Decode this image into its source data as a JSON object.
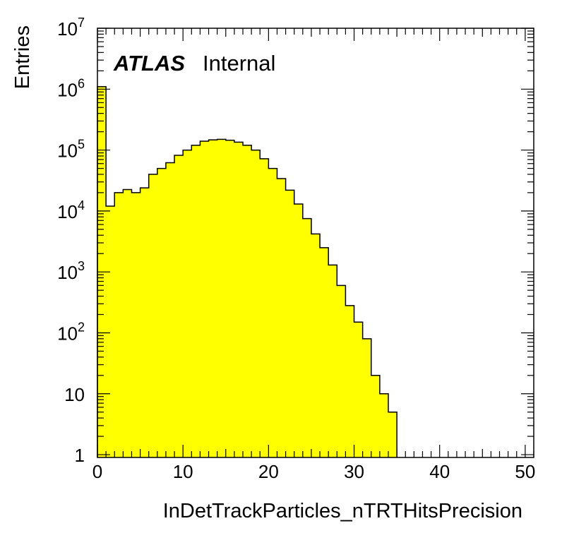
{
  "chart_data": {
    "type": "bar",
    "histogram": true,
    "xlabel": "InDetTrackParticles_nTRTHitsPrecision",
    "ylabel": "Entries",
    "xlim": [
      0,
      51
    ],
    "ylim": [
      0.9,
      10000000
    ],
    "yscale": "log",
    "grid": false,
    "bin_width": 1,
    "bin_starts": [
      0,
      1,
      2,
      3,
      4,
      5,
      6,
      7,
      8,
      9,
      10,
      11,
      12,
      13,
      14,
      15,
      16,
      17,
      18,
      19,
      20,
      21,
      22,
      23,
      24,
      25,
      26,
      27,
      28,
      29,
      30,
      31,
      32,
      33,
      34
    ],
    "values": [
      1100000,
      12000,
      20000,
      22500,
      20000,
      24000,
      40000,
      50000,
      62000,
      82000,
      100000,
      120000,
      140000,
      147000,
      150000,
      145000,
      135000,
      120000,
      100000,
      72000,
      50000,
      34000,
      22000,
      13000,
      7500,
      4200,
      2500,
      1300,
      600,
      280,
      150,
      80,
      20,
      10,
      5
    ],
    "fill_color": "#ffff00",
    "line_color": "#000000",
    "x_ticks": [
      "0",
      "10",
      "20",
      "30",
      "40",
      "50"
    ],
    "x_tick_values": [
      0,
      10,
      20,
      30,
      40,
      50
    ],
    "y_ticks": [
      {
        "value": 1,
        "base": "1",
        "exp": ""
      },
      {
        "value": 10,
        "base": "10",
        "exp": ""
      },
      {
        "value": 100,
        "base": "10",
        "exp": "2"
      },
      {
        "value": 1000,
        "base": "10",
        "exp": "3"
      },
      {
        "value": 10000,
        "base": "10",
        "exp": "4"
      },
      {
        "value": 100000,
        "base": "10",
        "exp": "5"
      },
      {
        "value": 1000000,
        "base": "10",
        "exp": "6"
      },
      {
        "value": 10000000,
        "base": "10",
        "exp": "7"
      }
    ],
    "annotations": {
      "experiment": "ATLAS",
      "status": "Internal"
    }
  }
}
